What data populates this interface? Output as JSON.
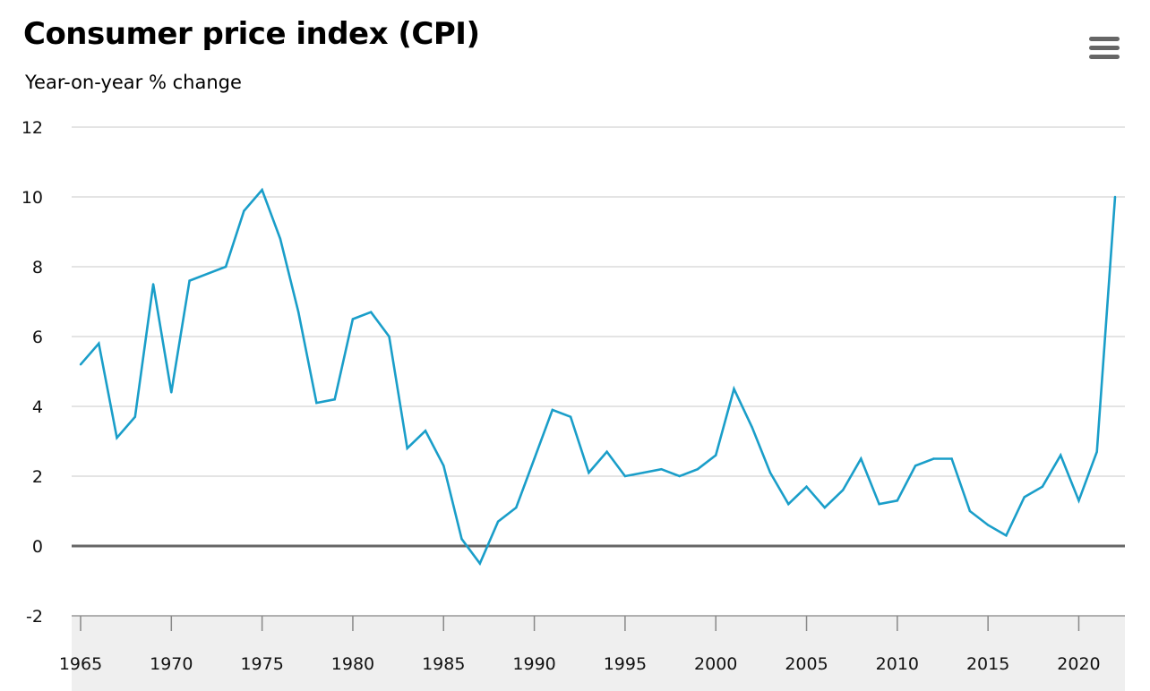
{
  "header": {
    "title": "Consumer price index (CPI)",
    "subtitle": "Year-on-year % change"
  },
  "toolbar": {
    "menu_icon": "hamburger-menu-icon"
  },
  "colors": {
    "line": "#1a9ec9",
    "grid": "#c8c8c8",
    "zero_line": "#666666",
    "xaxis_band": "#efefef"
  },
  "chart_data": {
    "type": "line",
    "title": "Consumer price index (CPI)",
    "ylabel": "Year-on-year % change",
    "xlabel": "",
    "x": [
      1965,
      1966,
      1967,
      1968,
      1969,
      1970,
      1971,
      1972,
      1973,
      1974,
      1975,
      1976,
      1977,
      1978,
      1979,
      1980,
      1981,
      1982,
      1983,
      1984,
      1985,
      1986,
      1987,
      1988,
      1989,
      1990,
      1991,
      1992,
      1993,
      1994,
      1995,
      1996,
      1997,
      1998,
      1999,
      2000,
      2001,
      2002,
      2003,
      2004,
      2005,
      2006,
      2007,
      2008,
      2009,
      2010,
      2011,
      2012,
      2013,
      2014,
      2015,
      2016,
      2017,
      2018,
      2019,
      2020,
      2021,
      2022
    ],
    "values": [
      5.2,
      5.8,
      3.1,
      3.7,
      7.5,
      4.4,
      7.6,
      7.8,
      8.0,
      9.6,
      10.2,
      8.8,
      6.7,
      4.1,
      4.2,
      6.5,
      6.7,
      6.0,
      2.8,
      3.3,
      2.3,
      0.2,
      -0.5,
      0.7,
      1.1,
      2.5,
      3.9,
      3.7,
      2.1,
      2.7,
      2.0,
      2.1,
      2.2,
      2.0,
      2.2,
      2.6,
      4.5,
      3.4,
      2.1,
      1.2,
      1.7,
      1.1,
      1.6,
      2.5,
      1.2,
      1.3,
      2.3,
      2.5,
      2.5,
      1.0,
      0.6,
      0.3,
      1.4,
      1.7,
      2.6,
      1.3,
      2.7,
      10.0
    ],
    "xlim": [
      1965,
      2022
    ],
    "ylim": [
      -2,
      12
    ],
    "yticks": [
      12,
      10,
      8,
      6,
      4,
      2,
      0,
      -2
    ],
    "xticks": [
      1965,
      1970,
      1975,
      1980,
      1985,
      1990,
      1995,
      2000,
      2005,
      2010,
      2015,
      2020
    ],
    "grid": true,
    "legend": "none"
  }
}
